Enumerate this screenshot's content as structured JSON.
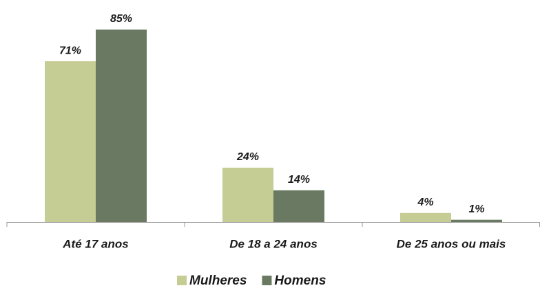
{
  "chart_data": {
    "type": "bar",
    "categories": [
      "Até 17 anos",
      "De 18 a 24 anos",
      "De 25 anos ou mais"
    ],
    "series": [
      {
        "name": "Mulheres",
        "color": "#c5cc94",
        "values": [
          71,
          24,
          4
        ],
        "value_labels": [
          "71%",
          "24%",
          "4%"
        ]
      },
      {
        "name": "Homens",
        "color": "#6a7a62",
        "values": [
          85,
          14,
          1
        ],
        "value_labels": [
          "85%",
          "14%",
          "1%"
        ]
      }
    ]
  }
}
